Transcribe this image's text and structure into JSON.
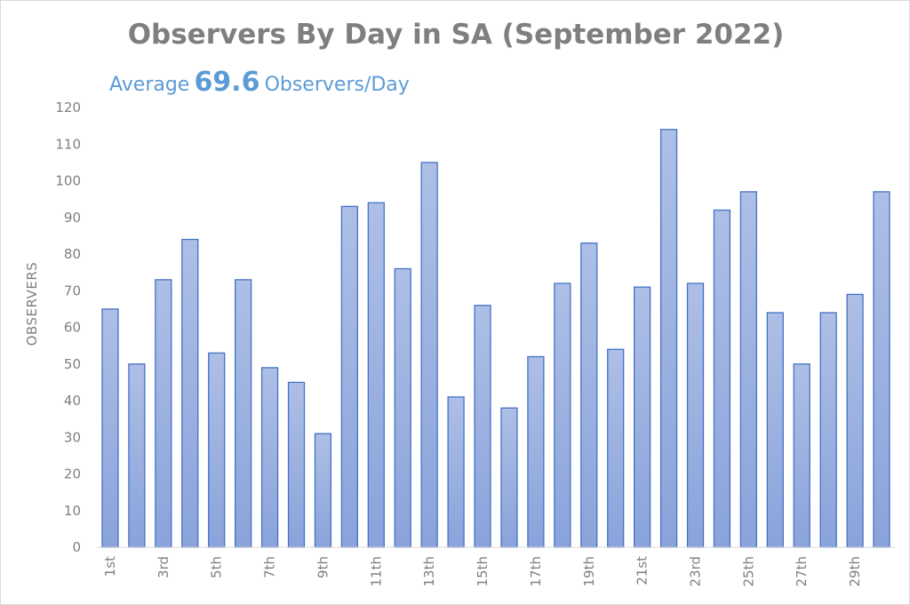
{
  "title": "Observers By Day in SA (September 2022)",
  "subtitle": {
    "prefix": "Average",
    "value": "69.6",
    "suffix": "Observers/Day"
  },
  "colors": {
    "bar_fill_top": "#aebfe6",
    "bar_fill_bottom": "#8aa3db",
    "bar_stroke": "#4472c4",
    "axis_text": "#7f7f7f",
    "title": "#7f7f7f",
    "subtitle": "#5b9bd5"
  },
  "chart_data": {
    "type": "bar",
    "title": "Observers By Day in SA (September 2022)",
    "subtitle": "Average 69.6 Observers/Day",
    "xlabel": "",
    "ylabel": "OBSERVERS",
    "ylim": [
      0,
      120
    ],
    "yticks": [
      0,
      10,
      20,
      30,
      40,
      50,
      60,
      70,
      80,
      90,
      100,
      110,
      120
    ],
    "grid": false,
    "legend": "none",
    "categories": [
      "1st",
      "2nd",
      "3rd",
      "4th",
      "5th",
      "6th",
      "7th",
      "8th",
      "9th",
      "10th",
      "11th",
      "12th",
      "13th",
      "14th",
      "15th",
      "16th",
      "17th",
      "18th",
      "19th",
      "20th",
      "21st",
      "22nd",
      "23rd",
      "24th",
      "25th",
      "26th",
      "27th",
      "28th",
      "29th",
      "30th"
    ],
    "visible_tick_labels": [
      "1st",
      "",
      "3rd",
      "",
      "5th",
      "",
      "7th",
      "",
      "9th",
      "",
      "11th",
      "",
      "13th",
      "",
      "15th",
      "",
      "17th",
      "",
      "19th",
      "",
      "21st",
      "",
      "23rd",
      "",
      "25th",
      "",
      "27th",
      "",
      "29th",
      ""
    ],
    "values": [
      65,
      50,
      73,
      84,
      53,
      73,
      49,
      45,
      31,
      93,
      94,
      76,
      105,
      41,
      66,
      38,
      52,
      72,
      83,
      54,
      71,
      114,
      72,
      92,
      97,
      64,
      50,
      64,
      69,
      97
    ]
  }
}
